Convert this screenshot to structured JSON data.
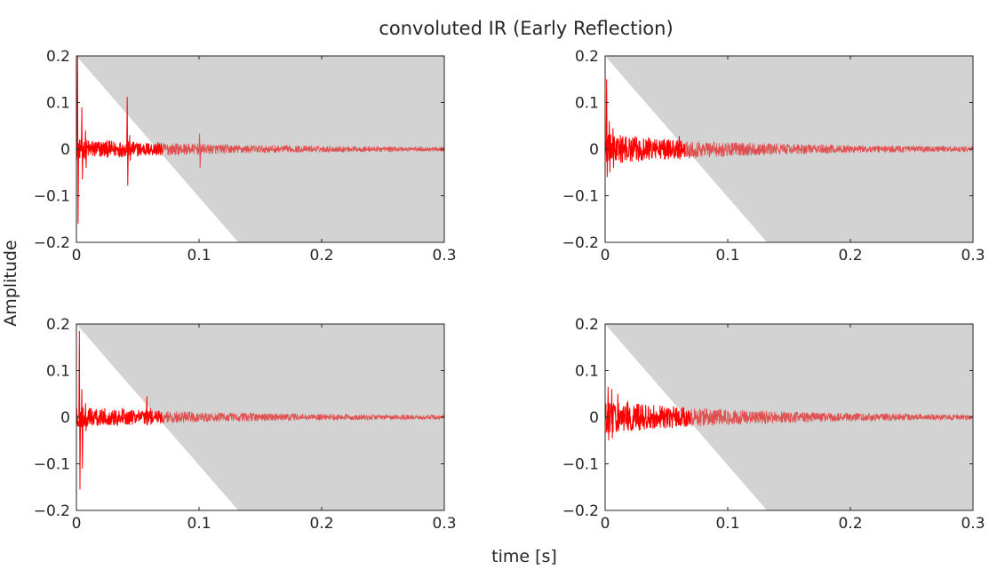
{
  "figure": {
    "title": "convoluted IR (Early Reflection)",
    "xlabel": "time [s]",
    "ylabel": "Amplitude"
  },
  "chart_data": [
    {
      "type": "line",
      "title": "",
      "xlim": [
        0,
        0.3
      ],
      "ylim": [
        -0.2,
        0.2
      ],
      "x_ticks": [
        0,
        0.1,
        0.2,
        0.3
      ],
      "x_tick_labels": [
        "0",
        "0.1",
        "0.2",
        "0.3"
      ],
      "y_ticks": [
        0.2,
        0.1,
        0,
        -0.1,
        -0.2
      ],
      "y_tick_labels": [
        "0.2",
        "0.1",
        "0",
        "−0.1",
        "−0.2"
      ],
      "grid": false,
      "shaded_region": {
        "description": "gray area above diagonal line from (0, 0.2) to (0.132, -0.2)",
        "line_start": [
          0,
          0.2
        ],
        "line_end": [
          0.132,
          -0.2
        ],
        "color": "#d3d3d3"
      },
      "series": [
        {
          "color": "#ff0000",
          "early_cutoff_s": 0.07,
          "noise_floor": 0.012,
          "decay_tau": 0.12,
          "spikes": [
            {
              "t": 0.0005,
              "amp": 0.2,
              "neg": -0.16
            },
            {
              "t": 0.004,
              "amp": 0.09,
              "neg": -0.065
            },
            {
              "t": 0.007,
              "amp": 0.04,
              "neg": -0.04
            },
            {
              "t": 0.041,
              "amp": 0.112,
              "neg": -0.078
            },
            {
              "t": 0.043,
              "amp": 0.03,
              "neg": -0.025
            },
            {
              "t": 0.066,
              "amp": 0.015,
              "neg": -0.012
            },
            {
              "t": 0.1,
              "amp": 0.033,
              "neg": -0.04
            }
          ]
        }
      ]
    },
    {
      "type": "line",
      "title": "",
      "xlim": [
        0,
        0.3
      ],
      "ylim": [
        -0.2,
        0.2
      ],
      "x_ticks": [
        0,
        0.1,
        0.2,
        0.3
      ],
      "x_tick_labels": [
        "0",
        "0.1",
        "0.2",
        "0.3"
      ],
      "y_ticks": [
        0.2,
        0.1,
        0,
        -0.1,
        -0.2
      ],
      "y_tick_labels": [
        "0.2",
        "0.1",
        "0",
        "−0.1",
        "−0.2"
      ],
      "grid": false,
      "shaded_region": {
        "description": "gray area above diagonal line from (0, 0.2) to (0.132, -0.2)",
        "line_start": [
          0,
          0.2
        ],
        "line_end": [
          0.132,
          -0.2
        ],
        "color": "#d3d3d3"
      },
      "series": [
        {
          "color": "#ff0000",
          "early_cutoff_s": 0.065,
          "noise_floor": 0.018,
          "decay_tau": 0.12,
          "spikes": [
            {
              "t": 0.0008,
              "amp": 0.15,
              "neg": -0.06
            },
            {
              "t": 0.003,
              "amp": 0.06,
              "neg": -0.05
            },
            {
              "t": 0.006,
              "amp": 0.045,
              "neg": -0.04
            },
            {
              "t": 0.012,
              "amp": 0.03,
              "neg": -0.03
            },
            {
              "t": 0.035,
              "amp": 0.025,
              "neg": -0.02
            },
            {
              "t": 0.06,
              "amp": 0.028,
              "neg": -0.022
            }
          ]
        }
      ]
    },
    {
      "type": "line",
      "title": "",
      "xlim": [
        0,
        0.3
      ],
      "ylim": [
        -0.2,
        0.2
      ],
      "x_ticks": [
        0,
        0.1,
        0.2,
        0.3
      ],
      "x_tick_labels": [
        "0",
        "0.1",
        "0.2",
        "0.3"
      ],
      "y_ticks": [
        0.2,
        0.1,
        0,
        -0.1,
        -0.2
      ],
      "y_tick_labels": [
        "0.2",
        "0.1",
        "0",
        "−0.1",
        "−0.2"
      ],
      "grid": false,
      "shaded_region": {
        "description": "gray area above diagonal line from (0, 0.2) to (0.132, -0.2)",
        "line_start": [
          0,
          0.2
        ],
        "line_end": [
          0.132,
          -0.2
        ],
        "color": "#d3d3d3"
      },
      "series": [
        {
          "color": "#ff0000",
          "early_cutoff_s": 0.07,
          "noise_floor": 0.012,
          "decay_tau": 0.12,
          "spikes": [
            {
              "t": 0.002,
              "amp": 0.185,
              "neg": -0.155
            },
            {
              "t": 0.004,
              "amp": 0.06,
              "neg": -0.11
            },
            {
              "t": 0.007,
              "amp": 0.03,
              "neg": -0.03
            },
            {
              "t": 0.037,
              "amp": 0.02,
              "neg": -0.012
            },
            {
              "t": 0.057,
              "amp": 0.045,
              "neg": -0.018
            },
            {
              "t": 0.06,
              "amp": 0.02,
              "neg": -0.015
            }
          ]
        }
      ]
    },
    {
      "type": "line",
      "title": "",
      "xlim": [
        0,
        0.3
      ],
      "ylim": [
        -0.2,
        0.2
      ],
      "x_ticks": [
        0,
        0.1,
        0.2,
        0.3
      ],
      "x_tick_labels": [
        "0",
        "0.1",
        "0.2",
        "0.3"
      ],
      "y_ticks": [
        0.2,
        0.1,
        0,
        -0.1,
        -0.2
      ],
      "y_tick_labels": [
        "0.2",
        "0.1",
        "0",
        "−0.1",
        "−0.2"
      ],
      "grid": false,
      "shaded_region": {
        "description": "gray area above diagonal line from (0, 0.2) to (0.132, -0.2)",
        "line_start": [
          0,
          0.2
        ],
        "line_end": [
          0.132,
          -0.2
        ],
        "color": "#d3d3d3"
      },
      "series": [
        {
          "color": "#ff0000",
          "early_cutoff_s": 0.07,
          "noise_floor": 0.02,
          "decay_tau": 0.12,
          "spikes": [
            {
              "t": 0.002,
              "amp": 0.065,
              "neg": -0.05
            },
            {
              "t": 0.005,
              "amp": 0.06,
              "neg": -0.045
            },
            {
              "t": 0.01,
              "amp": 0.05,
              "neg": -0.03
            },
            {
              "t": 0.018,
              "amp": 0.035,
              "neg": -0.025
            },
            {
              "t": 0.03,
              "amp": 0.025,
              "neg": -0.02
            },
            {
              "t": 0.05,
              "amp": 0.02,
              "neg": -0.015
            }
          ]
        }
      ]
    }
  ]
}
